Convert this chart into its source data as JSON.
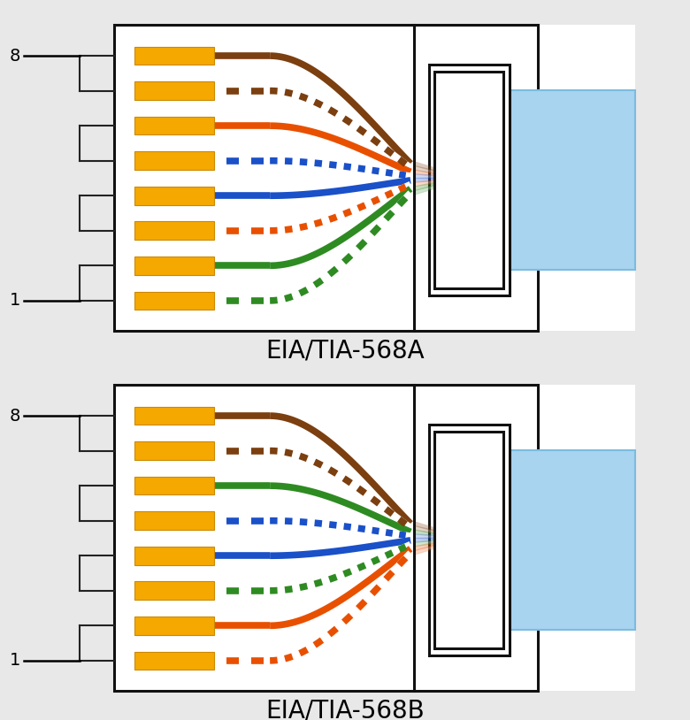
{
  "bg_color": "#e8e8e8",
  "title_568A": "EIA/TIA-568A",
  "title_568B": "EIA/TIA-568B",
  "title_fontsize": 20,
  "wire_colors_568A": [
    {
      "solid": "#7B3F10",
      "stripe": "#7B3F10",
      "name": "brown"
    },
    {
      "solid": "#FFFFFF",
      "stripe": "#7B3F10",
      "name": "brown-white"
    },
    {
      "solid": "#E85000",
      "stripe": "#E85000",
      "name": "orange"
    },
    {
      "solid": "#FFFFFF",
      "stripe": "#1A50C8",
      "name": "blue-white"
    },
    {
      "solid": "#1A50C8",
      "stripe": "#1A50C8",
      "name": "blue"
    },
    {
      "solid": "#FFFFFF",
      "stripe": "#E85000",
      "name": "orange-white"
    },
    {
      "solid": "#2E8B22",
      "stripe": "#2E8B22",
      "name": "green"
    },
    {
      "solid": "#FFFFFF",
      "stripe": "#2E8B22",
      "name": "green-white"
    }
  ],
  "wire_colors_568B": [
    {
      "solid": "#7B3F10",
      "stripe": "#7B3F10",
      "name": "brown"
    },
    {
      "solid": "#FFFFFF",
      "stripe": "#7B3F10",
      "name": "brown-white"
    },
    {
      "solid": "#2E8B22",
      "stripe": "#2E8B22",
      "name": "green"
    },
    {
      "solid": "#FFFFFF",
      "stripe": "#1A50C8",
      "name": "blue-white"
    },
    {
      "solid": "#1A50C8",
      "stripe": "#1A50C8",
      "name": "blue"
    },
    {
      "solid": "#FFFFFF",
      "stripe": "#2E8B22",
      "name": "green-white"
    },
    {
      "solid": "#E85000",
      "stripe": "#E85000",
      "name": "orange"
    },
    {
      "solid": "#FFFFFF",
      "stripe": "#E85000",
      "name": "orange-white"
    }
  ],
  "yellow_color": "#F5A800",
  "yellow_edge": "#CC8800",
  "connector_blue": "#A8D4F0",
  "connector_blue_dark": "#7BBCE0",
  "num_pins": 8
}
